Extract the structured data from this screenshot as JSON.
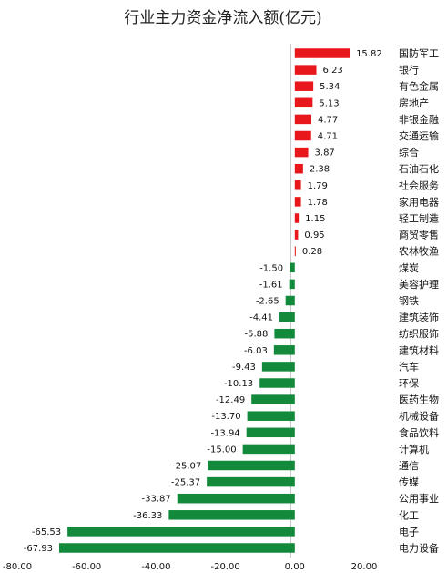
{
  "chart_data": {
    "type": "bar",
    "orientation": "horizontal",
    "title": "行业主力资金净流入额(亿元)",
    "xlabel": "",
    "ylabel": "",
    "xlim": [
      -80,
      20
    ],
    "xticks": [
      "-80.00",
      "-60.00",
      "-40.00",
      "-20.00",
      "0.00",
      "20.00"
    ],
    "grid": false,
    "legend": "none",
    "colors": {
      "positive": "#e8171c",
      "negative": "#138a3b"
    },
    "categories": [
      "国防军工",
      "银行",
      "有色金属",
      "房地产",
      "非银金融",
      "交通运输",
      "综合",
      "石油石化",
      "社会服务",
      "家用电器",
      "轻工制造",
      "商贸零售",
      "农林牧渔",
      "煤炭",
      "美容护理",
      "钢铁",
      "建筑装饰",
      "纺织服饰",
      "建筑材料",
      "汽车",
      "环保",
      "医药生物",
      "机械设备",
      "食品饮料",
      "计算机",
      "通信",
      "传媒",
      "公用事业",
      "化工",
      "电子",
      "电力设备"
    ],
    "values": [
      15.82,
      6.23,
      5.34,
      5.13,
      4.77,
      4.71,
      3.87,
      2.38,
      1.79,
      1.78,
      1.15,
      0.95,
      0.28,
      -1.5,
      -1.61,
      -2.65,
      -4.41,
      -5.88,
      -6.03,
      -9.43,
      -10.13,
      -12.49,
      -13.7,
      -13.94,
      -15.0,
      -25.07,
      -25.37,
      -33.87,
      -36.33,
      -65.53,
      -67.93
    ],
    "value_labels": [
      "15.82",
      "6.23",
      "5.34",
      "5.13",
      "4.77",
      "4.71",
      "3.87",
      "2.38",
      "1.79",
      "1.78",
      "1.15",
      "0.95",
      "0.28",
      "-1.50",
      "-1.61",
      "-2.65",
      "-4.41",
      "-5.88",
      "-6.03",
      "-9.43",
      "-10.13",
      "-12.49",
      "-13.70",
      "-13.94",
      "-15.00",
      "-25.07",
      "-25.37",
      "-33.87",
      "-36.33",
      "-65.53",
      "-67.93"
    ]
  }
}
